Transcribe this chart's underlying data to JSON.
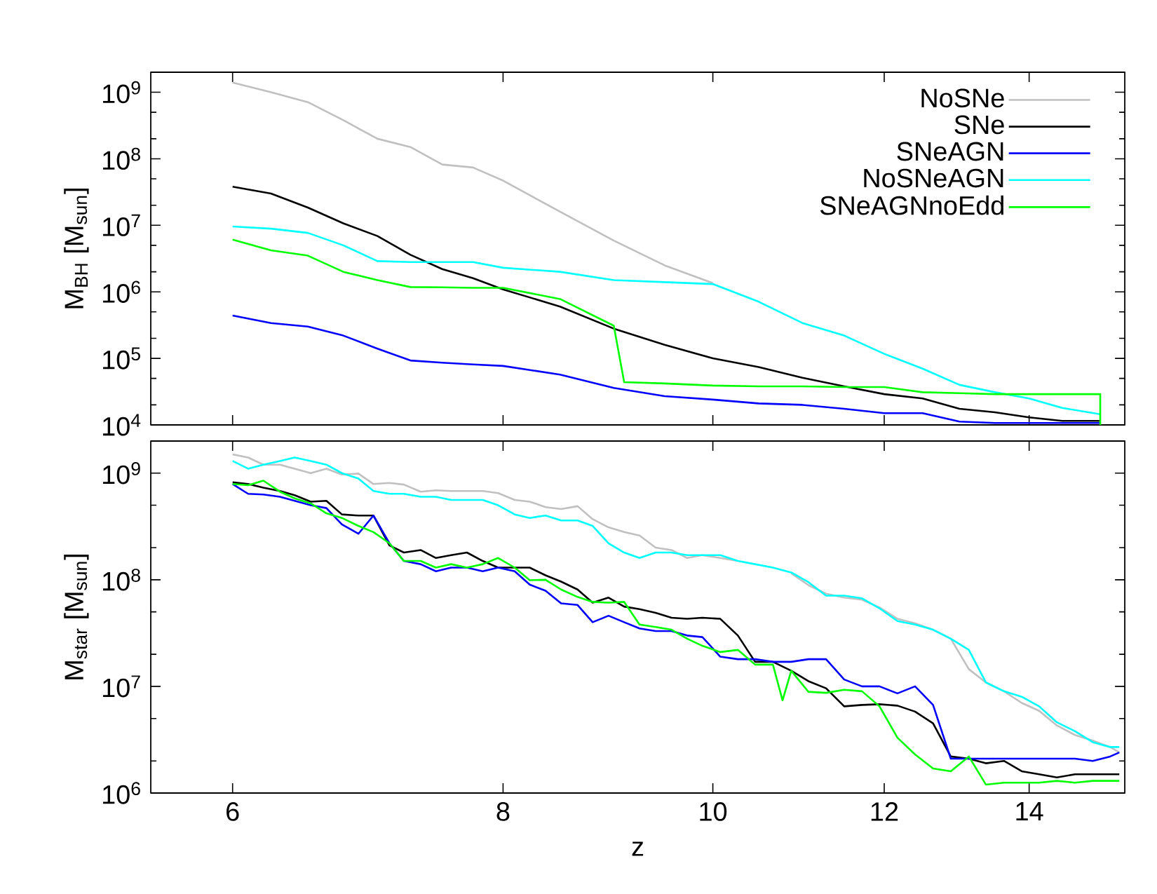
{
  "chart_data": [
    {
      "type": "line",
      "ylabel": "M$_{BH}$ [M$_{sun}$]",
      "log": "xy",
      "legend": "top right",
      "tick_labels": "y",
      "xlim": [
        5.5,
        15.5
      ],
      "xticks": [
        6,
        8,
        10,
        12,
        14
      ],
      "ylim": [
        10000,
        2000000000
      ],
      "yticks": [
        {
          "value": 10000,
          "label": "10$^{4}$"
        },
        {
          "value": 100000,
          "label": "10$^{5}$"
        },
        {
          "value": 1000000,
          "label": "10$^{6}$"
        },
        {
          "value": 10000000,
          "label": "10$^{7}$"
        },
        {
          "value": 100000000,
          "label": "10$^{8}$"
        },
        {
          "value": 1000000000,
          "label": "10$^{9}$"
        }
      ],
      "x": [
        6,
        6.25,
        6.5,
        6.75,
        7,
        7.25,
        7.5,
        7.75,
        8,
        8.5,
        9,
        9.5,
        10,
        10.5,
        11,
        11.5,
        12,
        12.5,
        13,
        13.5,
        14,
        14.5,
        15.1
      ],
      "series": [
        {
          "name": "NoSNe",
          "color": "#c0c0c0",
          "values": [
            1400000000.0,
            1000000000.0,
            710000000.0,
            380000000.0,
            200000000.0,
            150000000.0,
            82000000.0,
            74000000.0,
            47000000.0,
            16000000.0,
            5900000.0,
            2500000.0,
            1350000.0,
            null,
            null,
            null,
            null,
            null,
            null,
            null,
            null,
            null,
            null
          ]
        },
        {
          "name": "SNe",
          "color": "#000000",
          "values": [
            38000000.0,
            30000000.0,
            18500000.0,
            10700000.0,
            6900000.0,
            3600000.0,
            2200000.0,
            1600000.0,
            1090000.0,
            600000.0,
            280000.0,
            160000.0,
            100000.0,
            74000.0,
            51000.0,
            38000.0,
            29000.0,
            25000.0,
            17500.0,
            15500.0,
            13000.0,
            11500.0,
            11500.0
          ]
        },
        {
          "name": "SNeAGN",
          "color": "#0000ff",
          "values": [
            440000.0,
            340000.0,
            300000.0,
            220000.0,
            140000.0,
            93000.0,
            86000.0,
            81000.0,
            77000.0,
            57000.0,
            36000.0,
            27000.0,
            24000.0,
            21000.0,
            20000.0,
            17500.0,
            15000.0,
            15000.0,
            11200.0,
            10700.0,
            10700.0,
            10700.0,
            10700.0
          ]
        },
        {
          "name": "NoSNeAGN",
          "color": "#00ffff",
          "values": [
            9600000.0,
            8900000.0,
            7700000.0,
            5000000.0,
            2900000.0,
            2800000.0,
            2800000.0,
            2800000.0,
            2300000.0,
            2000000.0,
            1500000.0,
            1400000.0,
            1310000.0,
            710000.0,
            340000.0,
            220000.0,
            117000.0,
            70000.0,
            40000.0,
            31000.0,
            25000.0,
            18000.0,
            14500.0
          ]
        },
        {
          "name": "SNeAGNnoEdd",
          "color": "#00ff00",
          "x": [
            6,
            6.25,
            6.5,
            6.75,
            7,
            7.25,
            7.5,
            7.75,
            8,
            8.5,
            9,
            9.1,
            9.5,
            10,
            10.5,
            11,
            11.5,
            12,
            12.5,
            13,
            13.5,
            14,
            14.5,
            15.1,
            15.1
          ],
          "values": [
            6100000.0,
            4200000.0,
            3500000.0,
            2000000.0,
            1500000.0,
            1180000.0,
            1170000.0,
            1150000.0,
            1150000.0,
            780000.0,
            310000.0,
            44000.0,
            42000.0,
            39000.0,
            38000.0,
            38000.0,
            37000.0,
            37000.0,
            31000.0,
            30000.0,
            29000.0,
            29000.0,
            29000.0,
            29000.0,
            10000.0
          ]
        }
      ]
    },
    {
      "type": "line",
      "xlabel": "z",
      "ylabel": "M$_{star}$ [M$_{sun}$]",
      "log": "xy",
      "xlim": [
        5.5,
        15.5
      ],
      "xticks": [
        6,
        8,
        10,
        12,
        14
      ],
      "ylim": [
        1000000,
        2000000000
      ],
      "yticks": [
        {
          "value": 1000000,
          "label": "10$^{6}$"
        },
        {
          "value": 10000000,
          "label": "10$^{7}$"
        },
        {
          "value": 100000000,
          "label": "10$^{8}$"
        },
        {
          "value": 1000000000,
          "label": "10$^{9}$"
        }
      ],
      "x": [
        6.0,
        6.1,
        6.2,
        6.31,
        6.41,
        6.52,
        6.63,
        6.74,
        6.86,
        6.97,
        7.09,
        7.2,
        7.33,
        7.45,
        7.57,
        7.7,
        7.83,
        7.96,
        8.1,
        8.23,
        8.37,
        8.51,
        8.66,
        8.8,
        8.95,
        9.1,
        9.25,
        9.41,
        9.57,
        9.73,
        9.89,
        10.08,
        10.27,
        10.46,
        10.66,
        10.87,
        11.07,
        11.28,
        11.5,
        11.72,
        11.94,
        12.17,
        12.4,
        12.64,
        12.88,
        13.13,
        13.37,
        13.63,
        13.89,
        14.15,
        14.42,
        14.7,
        14.98,
        15.26,
        15.41
      ],
      "series": [
        {
          "color": "#c0c0c0",
          "values": [
            1500000000.0,
            1400000000.0,
            1200000000.0,
            1200000000.0,
            1100000000.0,
            1000000000.0,
            1100000000.0,
            970000000.0,
            990000000.0,
            790000000.0,
            810000000.0,
            780000000.0,
            670000000.0,
            690000000.0,
            680000000.0,
            680000000.0,
            680000000.0,
            650000000.0,
            560000000.0,
            540000000.0,
            480000000.0,
            460000000.0,
            490000000.0,
            370000000.0,
            310000000.0,
            280000000.0,
            260000000.0,
            200000000.0,
            190000000.0,
            160000000.0,
            170000000.0,
            160000000.0,
            150000000.0,
            null,
            null,
            115000000.0,
            89000000.0,
            74000000.0,
            68000000.0,
            65000000.0,
            55000000.0,
            43000000.0,
            39000000.0,
            34000000.0,
            28000000.0,
            14500000.0,
            10900000.0,
            9000000.0,
            7000000.0,
            5900000.0,
            4300000.0,
            3500000.0,
            3100000.0,
            2700000.0,
            2400000.0
          ]
        },
        {
          "color": "#000000",
          "values": [
            820000000.0,
            790000000.0,
            730000000.0,
            680000000.0,
            620000000.0,
            540000000.0,
            550000000.0,
            410000000.0,
            400000000.0,
            400000000.0,
            210000000.0,
            180000000.0,
            190000000.0,
            160000000.0,
            170000000.0,
            180000000.0,
            150000000.0,
            130000000.0,
            130000000.0,
            130000000.0,
            110000000.0,
            96000000.0,
            81000000.0,
            61000000.0,
            68000000.0,
            56000000.0,
            53000000.0,
            49000000.0,
            44000000.0,
            43000000.0,
            44000000.0,
            43000000.0,
            30000000.0,
            17000000.0,
            17000000.0,
            14000000.0,
            11200000.0,
            9600000.0,
            6500000.0,
            6700000.0,
            6800000.0,
            6600000.0,
            5800000.0,
            4500000.0,
            2200000.0,
            2100000.0,
            1900000.0,
            2000000.0,
            1600000.0,
            1500000.0,
            1400000.0,
            1500000.0,
            1500000.0,
            1500000.0,
            1500000.0
          ]
        },
        {
          "color": "#0000ff",
          "values": [
            790000000.0,
            640000000.0,
            630000000.0,
            600000000.0,
            550000000.0,
            500000000.0,
            470000000.0,
            330000000.0,
            270000000.0,
            400000000.0,
            220000000.0,
            150000000.0,
            140000000.0,
            120000000.0,
            130000000.0,
            130000000.0,
            120000000.0,
            130000000.0,
            120000000.0,
            90000000.0,
            79000000.0,
            60000000.0,
            58000000.0,
            40000000.0,
            46000000.0,
            40000000.0,
            35000000.0,
            33000000.0,
            33000000.0,
            30000000.0,
            29000000.0,
            19000000.0,
            18000000.0,
            18000000.0,
            17000000.0,
            17000000.0,
            18000000.0,
            18000000.0,
            11600000.0,
            10000000.0,
            10000000.0,
            8600000.0,
            10000000.0,
            6700000.0,
            2100000.0,
            2100000.0,
            2100000.0,
            2100000.0,
            2100000.0,
            2100000.0,
            2100000.0,
            2100000.0,
            2000000.0,
            2200000.0,
            2400000.0
          ]
        },
        {
          "color": "#00ffff",
          "values": [
            1300000000.0,
            1100000000.0,
            1200000000.0,
            1300000000.0,
            1400000000.0,
            1300000000.0,
            1200000000.0,
            1000000000.0,
            890000000.0,
            680000000.0,
            640000000.0,
            640000000.0,
            600000000.0,
            600000000.0,
            560000000.0,
            560000000.0,
            560000000.0,
            500000000.0,
            410000000.0,
            380000000.0,
            400000000.0,
            360000000.0,
            360000000.0,
            320000000.0,
            220000000.0,
            180000000.0,
            160000000.0,
            180000000.0,
            180000000.0,
            170000000.0,
            170000000.0,
            170000000.0,
            150000000.0,
            140000000.0,
            130000000.0,
            117000000.0,
            95000000.0,
            71000000.0,
            71000000.0,
            67000000.0,
            54000000.0,
            41000000.0,
            38000000.0,
            34000000.0,
            28000000.0,
            22000000.0,
            10900000.0,
            9000000.0,
            8000000.0,
            6500000.0,
            4600000.0,
            3800000.0,
            3000000.0,
            2700000.0,
            2700000.0
          ]
        },
        {
          "color": "#00ff00",
          "x": [
            6.0,
            6.1,
            6.2,
            6.31,
            6.41,
            6.52,
            6.63,
            6.74,
            6.86,
            6.97,
            7.09,
            7.2,
            7.33,
            7.45,
            7.57,
            7.7,
            7.83,
            7.96,
            8.1,
            8.23,
            8.37,
            8.51,
            8.66,
            8.8,
            8.95,
            9.1,
            9.25,
            9.41,
            9.57,
            9.73,
            9.89,
            10.08,
            10.27,
            10.46,
            10.66,
            10.77,
            10.87,
            11.07,
            11.28,
            11.5,
            11.72,
            11.94,
            12.17,
            12.4,
            12.64,
            12.88,
            13.13,
            13.37,
            13.63,
            13.89,
            14.15,
            14.42,
            14.7,
            14.98,
            15.26,
            15.41
          ],
          "values": [
            790000000.0,
            770000000.0,
            850000000.0,
            670000000.0,
            580000000.0,
            520000000.0,
            420000000.0,
            380000000.0,
            320000000.0,
            280000000.0,
            220000000.0,
            150000000.0,
            150000000.0,
            130000000.0,
            140000000.0,
            130000000.0,
            140000000.0,
            160000000.0,
            130000000.0,
            99000000.0,
            100000000.0,
            81000000.0,
            69000000.0,
            62000000.0,
            61000000.0,
            62000000.0,
            38000000.0,
            36000000.0,
            34000000.0,
            28000000.0,
            24000000.0,
            21000000.0,
            22000000.0,
            16000000.0,
            16000000.0,
            7400000.0,
            14000000.0,
            8900000.0,
            8700000.0,
            9300000.0,
            9000000.0,
            6500000.0,
            3300000.0,
            2300000.0,
            1700000.0,
            1600000.0,
            2200000.0,
            1200000.0,
            1250000.0,
            1250000.0,
            1250000.0,
            1300000.0,
            1250000.0,
            1300000.0,
            1300000.0,
            1300000.0
          ]
        }
      ]
    }
  ]
}
